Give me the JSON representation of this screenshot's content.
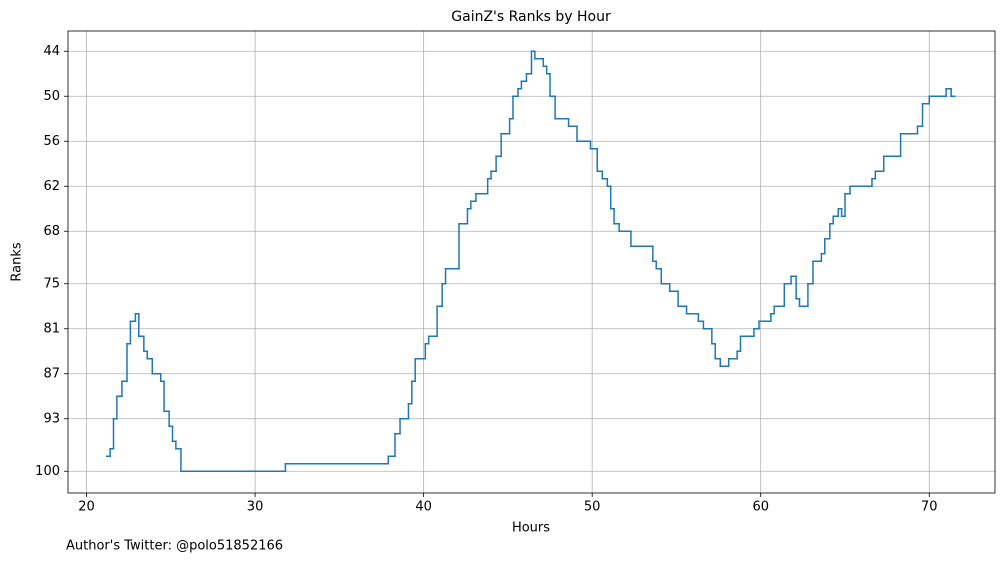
{
  "chart_data": {
    "type": "step",
    "title": "GainZ's Ranks by Hour",
    "xlabel": "Hours",
    "ylabel": "Ranks",
    "annotation": "Author's Twitter: @polo51852166",
    "color": "#1f77b4",
    "grid": true,
    "xlim": [
      18.9,
      73.9
    ],
    "xticks": [
      20,
      30,
      40,
      50,
      60,
      70
    ],
    "ylim": [
      102.9,
      41.3
    ],
    "yticks": [
      100,
      93,
      87,
      81,
      75,
      68,
      62,
      56,
      50,
      44
    ],
    "x": [
      21.2,
      21.4,
      21.6,
      21.8,
      22.1,
      22.4,
      22.6,
      22.9,
      23.1,
      23.4,
      23.6,
      23.9,
      24.4,
      24.6,
      24.9,
      25.1,
      25.3,
      25.6,
      31.8,
      37.9,
      38.3,
      38.6,
      39.1,
      39.3,
      39.5,
      40.1,
      40.3,
      40.8,
      41.1,
      41.3,
      42.1,
      42.6,
      42.8,
      43.1,
      43.8,
      44.0,
      44.3,
      44.6,
      45.1,
      45.3,
      45.6,
      45.8,
      46.1,
      46.4,
      46.6,
      47.1,
      47.3,
      47.5,
      47.8,
      48.6,
      49.1,
      49.9,
      50.3,
      50.6,
      50.9,
      51.1,
      51.3,
      51.6,
      52.3,
      53.6,
      53.8,
      54.1,
      54.6,
      55.1,
      55.6,
      56.3,
      56.6,
      57.1,
      57.3,
      57.6,
      58.1,
      58.6,
      58.8,
      59.6,
      59.9,
      60.6,
      60.8,
      61.4,
      61.8,
      62.1,
      62.3,
      62.8,
      63.1,
      63.6,
      63.8,
      64.1,
      64.3,
      64.6,
      64.8,
      65.0,
      65.3,
      66.6,
      66.8,
      67.3,
      68.3,
      69.3,
      69.6,
      70.0,
      71.0,
      71.3,
      71.5
    ],
    "values": [
      98,
      97,
      93,
      90,
      88,
      83,
      80,
      79,
      82,
      84,
      85,
      87,
      88,
      92,
      94,
      96,
      97,
      100,
      99,
      98,
      95,
      93,
      91,
      88,
      85,
      83,
      82,
      78,
      75,
      73,
      67,
      65,
      64,
      63,
      61,
      60,
      58,
      55,
      53,
      50,
      49,
      48,
      47,
      44,
      45,
      46,
      47,
      50,
      53,
      54,
      56,
      57,
      60,
      61,
      62,
      65,
      67,
      68,
      70,
      72,
      73,
      75,
      76,
      78,
      79,
      80,
      81,
      83,
      85,
      86,
      85,
      84,
      82,
      81,
      80,
      79,
      78,
      75,
      74,
      77,
      78,
      75,
      72,
      71,
      69,
      67,
      66,
      65,
      66,
      63,
      62,
      61,
      60,
      58,
      55,
      54,
      51,
      50,
      49,
      50,
      50
    ]
  }
}
